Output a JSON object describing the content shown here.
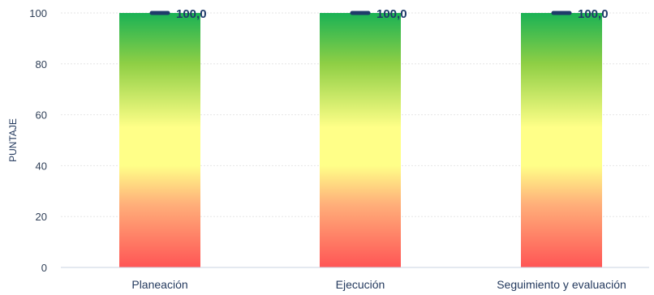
{
  "chart_data": {
    "type": "bar",
    "categories": [
      "Planeación",
      "Ejecución",
      "Seguimiento y evaluación"
    ],
    "series": [
      {
        "values": [
          100,
          100,
          100
        ]
      }
    ],
    "markers": [
      100,
      100,
      100
    ],
    "data_labels": [
      "100,0",
      "100,0",
      "100,0"
    ],
    "title": "",
    "xlabel": "",
    "ylabel": "PUNTAJE",
    "ylim": [
      0,
      100
    ],
    "yticks": [
      0,
      20,
      40,
      60,
      80,
      100
    ],
    "grid": true,
    "legend": "none",
    "colors": {
      "gradient_top": "#1ab255",
      "gradient_upper": "#8fcf45",
      "gradient_mid": "#ffff88",
      "gradient_lower": "#ffb07a",
      "gradient_bottom": "#ff5555",
      "marker": "#1f3b6a",
      "grid": "#e6e6e6",
      "axis": "#c9d3e0"
    }
  }
}
